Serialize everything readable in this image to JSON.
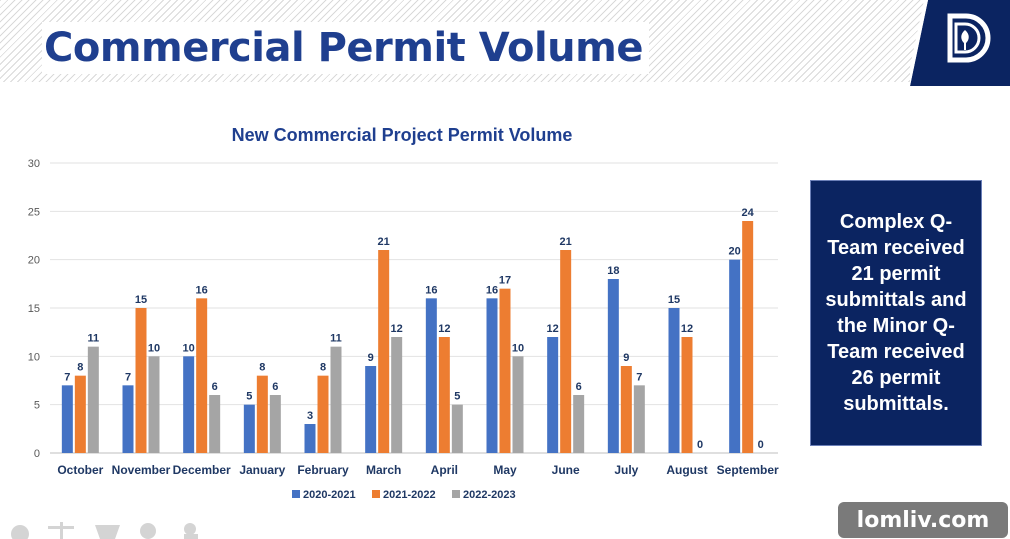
{
  "page": {
    "title": "Commercial Permit Volume",
    "callout": "Complex Q-Team received 21 permit submittals and the Minor Q-Team received 26 permit submittals.",
    "watermark": "lomliv.com"
  },
  "colors": {
    "title": "#1f3f8f",
    "series": [
      "#4472c4",
      "#ed7d31",
      "#a5a5a5"
    ],
    "data_label": "#1f3864",
    "callout_bg": "#0b2461"
  },
  "icons": [
    "dallas-logo-icon",
    "footer-icons-strip"
  ],
  "chart_data": {
    "type": "bar",
    "title": "New Commercial Project Permit Volume",
    "xlabel": "",
    "ylabel": "",
    "ylim": [
      0,
      30
    ],
    "yticks": [
      0,
      5,
      10,
      15,
      20,
      25,
      30
    ],
    "grid": true,
    "legend": "bottom",
    "categories": [
      "October",
      "November",
      "December",
      "January",
      "February",
      "March",
      "April",
      "May",
      "June",
      "July",
      "August",
      "September"
    ],
    "series": [
      {
        "name": "2020-2021",
        "values": [
          7,
          7,
          10,
          5,
          3,
          9,
          16,
          16,
          12,
          18,
          15,
          20
        ]
      },
      {
        "name": "2021-2022",
        "values": [
          8,
          15,
          16,
          8,
          8,
          21,
          12,
          17,
          21,
          9,
          12,
          24
        ]
      },
      {
        "name": "2022-2023",
        "values": [
          11,
          10,
          6,
          6,
          11,
          12,
          5,
          10,
          6,
          7,
          0,
          0
        ]
      }
    ]
  }
}
